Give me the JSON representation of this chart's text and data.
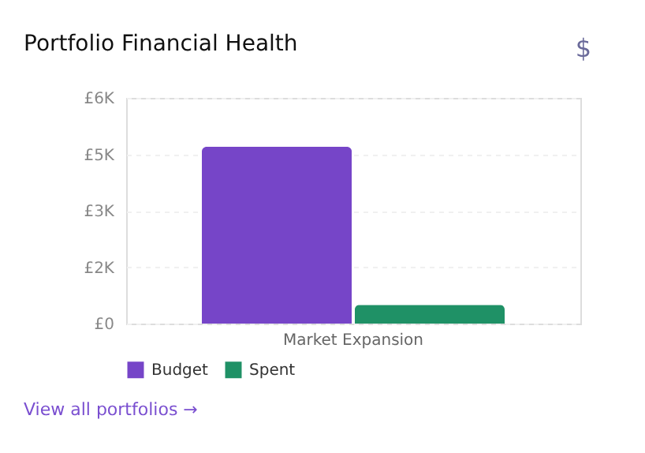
{
  "chart_data": {
    "type": "bar",
    "title": "Portfolio Financial Health",
    "categories": [
      "Market Expansion"
    ],
    "series": [
      {
        "name": "Budget",
        "color": "#7645c8",
        "values": [
          4700
        ]
      },
      {
        "name": "Spent",
        "color": "#1f9166",
        "values": [
          500
        ]
      }
    ],
    "ylim": [
      0,
      6000
    ],
    "yticks": [
      {
        "value": 0,
        "label": "£0"
      },
      {
        "value": 1500,
        "label": "£2K"
      },
      {
        "value": 3000,
        "label": "£3K"
      },
      {
        "value": 4500,
        "label": "£5K"
      },
      {
        "value": 6000,
        "label": "£6K"
      }
    ],
    "grid": "y",
    "legend": "bottom",
    "annotations": [
      "$",
      "View all portfolios →"
    ]
  }
}
